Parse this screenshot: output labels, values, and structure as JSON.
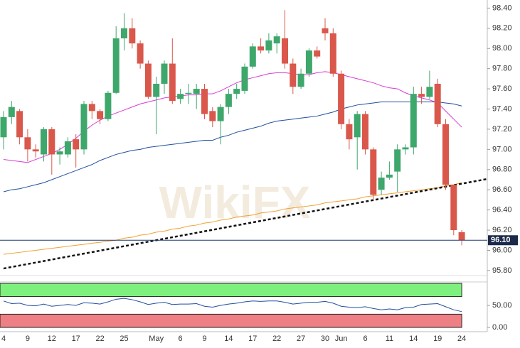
{
  "chart_data": [
    {
      "type": "candlestick",
      "categories": [
        "4",
        null,
        null,
        "9",
        null,
        null,
        "12",
        null,
        null,
        "17",
        null,
        null,
        "22",
        null,
        null,
        "25",
        null,
        null,
        null,
        "May",
        null,
        null,
        "6",
        null,
        null,
        "9",
        null,
        null,
        "14",
        null,
        null,
        "17",
        null,
        null,
        "22",
        null,
        null,
        "27",
        null,
        null,
        "30",
        null,
        "Jun",
        null,
        null,
        "6",
        null,
        null,
        "11",
        null,
        null,
        "14",
        null,
        null,
        "19",
        null,
        null,
        "24"
      ],
      "open": [
        97.12,
        97.32,
        97.38,
        97.12,
        97.0,
        96.95,
        97.2,
        96.95,
        96.95,
        97.1,
        97.0,
        97.45,
        97.38,
        97.3,
        97.56,
        98.1,
        98.2,
        98.05,
        97.85,
        97.52,
        97.65,
        97.85,
        97.5,
        97.55,
        97.55,
        97.6,
        97.38,
        97.28,
        97.42,
        97.55,
        97.58,
        97.82,
        98.02,
        97.98,
        98.05,
        98.1,
        97.85,
        97.62,
        97.75,
        97.98,
        98.2,
        98.15,
        97.75,
        97.25,
        97.12,
        97.35,
        97.0,
        96.6,
        96.72,
        96.78,
        97.0,
        97.02,
        97.55,
        97.52,
        97.65,
        97.25,
        96.65,
        96.18
      ],
      "high": [
        97.38,
        97.48,
        97.4,
        97.2,
        97.05,
        97.22,
        97.22,
        97.02,
        97.12,
        97.15,
        97.48,
        97.48,
        97.4,
        97.58,
        98.22,
        98.35,
        98.3,
        98.08,
        97.88,
        97.72,
        97.88,
        98.1,
        97.6,
        97.65,
        97.65,
        97.65,
        97.42,
        97.45,
        97.6,
        97.65,
        97.85,
        98.05,
        98.1,
        98.15,
        98.15,
        98.38,
        97.9,
        97.8,
        98.0,
        98.02,
        98.3,
        98.2,
        97.78,
        97.3,
        97.38,
        97.38,
        97.02,
        96.78,
        96.88,
        97.05,
        97.05,
        97.62,
        97.62,
        97.78,
        97.7,
        97.3,
        96.65,
        96.2
      ],
      "low": [
        97.0,
        97.25,
        97.05,
        96.88,
        96.92,
        96.88,
        96.75,
        96.85,
        96.92,
        96.82,
        96.95,
        97.3,
        97.25,
        97.28,
        97.55,
        97.98,
        98.0,
        97.8,
        97.5,
        97.15,
        97.55,
        97.45,
        97.45,
        97.45,
        97.4,
        97.3,
        97.22,
        97.05,
        97.35,
        97.5,
        97.55,
        97.8,
        97.95,
        97.95,
        97.95,
        97.8,
        97.55,
        97.6,
        97.72,
        97.9,
        98.08,
        97.72,
        97.2,
        97.0,
        96.8,
        96.95,
        96.5,
        96.55,
        96.7,
        96.58,
        96.95,
        96.95,
        97.45,
        97.5,
        97.22,
        96.6,
        96.15,
        96.05
      ],
      "close": [
        97.32,
        97.42,
        97.12,
        97.0,
        96.98,
        97.2,
        96.95,
        96.98,
        97.08,
        97.0,
        97.45,
        97.38,
        97.3,
        97.56,
        98.1,
        98.2,
        98.05,
        97.85,
        97.52,
        97.65,
        97.85,
        97.48,
        97.55,
        97.56,
        97.6,
        97.35,
        97.28,
        97.42,
        97.55,
        97.6,
        97.82,
        98.02,
        97.98,
        98.08,
        98.12,
        97.85,
        97.62,
        97.75,
        97.98,
        97.92,
        98.15,
        97.75,
        97.25,
        97.1,
        97.35,
        97.0,
        96.55,
        96.72,
        96.75,
        97.0,
        97.02,
        97.55,
        97.52,
        97.62,
        97.25,
        96.65,
        96.2,
        96.1
      ],
      "up_color": "#3ea76b",
      "down_color": "#d9574b",
      "overlays": [
        {
          "color": "#d63bd6",
          "values": [
            96.9,
            96.89,
            96.88,
            96.87,
            96.9,
            96.93,
            96.96,
            97.0,
            97.05,
            97.11,
            97.18,
            97.24,
            97.29,
            97.33,
            97.36,
            97.39,
            97.42,
            97.45,
            97.47,
            97.49,
            97.51,
            97.52,
            97.53,
            97.54,
            97.54,
            97.55,
            97.55,
            97.58,
            97.62,
            97.66,
            97.69,
            97.71,
            97.73,
            97.75,
            97.76,
            97.76,
            97.75,
            97.74,
            97.74,
            97.76,
            97.77,
            97.76,
            97.74,
            97.72,
            97.7,
            97.68,
            97.66,
            97.63,
            97.61,
            97.6,
            97.56,
            97.53,
            97.51,
            97.49,
            97.46,
            97.38,
            97.3,
            97.22
          ]
        },
        {
          "color": "#1f4e9c",
          "values": [
            96.58,
            96.6,
            96.61,
            96.63,
            96.65,
            96.67,
            96.7,
            96.73,
            96.76,
            96.79,
            96.82,
            96.85,
            96.89,
            96.92,
            96.95,
            96.97,
            96.99,
            97.0,
            97.02,
            97.03,
            97.04,
            97.05,
            97.06,
            97.07,
            97.08,
            97.09,
            97.09,
            97.12,
            97.14,
            97.17,
            97.19,
            97.21,
            97.23,
            97.26,
            97.28,
            97.29,
            97.3,
            97.31,
            97.32,
            97.33,
            97.35,
            97.37,
            97.4,
            97.42,
            97.44,
            97.45,
            97.46,
            97.47,
            97.47,
            97.47,
            97.47,
            97.47,
            97.47,
            97.47,
            97.47,
            97.46,
            97.45,
            97.43
          ]
        },
        {
          "color": "#f0a030",
          "values": [
            95.96,
            95.97,
            95.98,
            95.99,
            96.0,
            96.01,
            96.02,
            96.03,
            96.04,
            96.05,
            96.06,
            96.07,
            96.08,
            96.09,
            96.1,
            96.12,
            96.13,
            96.15,
            96.16,
            96.18,
            96.19,
            96.21,
            96.22,
            96.24,
            96.25,
            96.27,
            96.28,
            96.3,
            96.31,
            96.33,
            96.34,
            96.35,
            96.37,
            96.38,
            96.39,
            96.41,
            96.42,
            96.43,
            96.44,
            96.45,
            96.47,
            96.48,
            96.49,
            96.5,
            96.51,
            96.53,
            96.54,
            96.55,
            96.56,
            96.57,
            96.58,
            96.59,
            96.6,
            96.61,
            96.62,
            96.64,
            96.65,
            96.67
          ]
        }
      ],
      "trendline": {
        "from": 95.82,
        "to": 96.66,
        "color": "#111111"
      },
      "last_price": {
        "value": 96.1,
        "label": "96.10"
      },
      "ylim": [
        95.75,
        98.48
      ],
      "yticks": [
        {
          "value": 95.8,
          "label": "95.80"
        },
        {
          "value": 96,
          "label": "96.00"
        },
        {
          "value": 96.2,
          "label": "96.20"
        },
        {
          "value": 96.4,
          "label": "96.40"
        },
        {
          "value": 96.6,
          "label": "96.60"
        },
        {
          "value": 96.8,
          "label": "96.80"
        },
        {
          "value": 97,
          "label": "97.00"
        },
        {
          "value": 97.2,
          "label": "97.20"
        },
        {
          "value": 97.4,
          "label": "97.40"
        },
        {
          "value": 97.6,
          "label": "97.60"
        },
        {
          "value": 97.8,
          "label": "97.80"
        },
        {
          "value": 98,
          "label": "98.00"
        },
        {
          "value": 98.2,
          "label": "98.20"
        },
        {
          "value": 98.4,
          "label": "98.40"
        }
      ],
      "watermark": "WikiFX"
    },
    {
      "type": "line",
      "values": [
        60,
        54,
        55,
        50,
        49,
        53,
        48,
        50,
        52,
        50,
        56,
        55,
        53,
        58,
        64,
        66,
        63,
        58,
        52,
        55,
        57,
        52,
        53,
        53,
        54,
        48,
        46,
        50,
        53,
        55,
        58,
        60,
        59,
        60,
        60,
        57,
        53,
        55,
        57,
        57,
        59,
        55,
        48,
        46,
        45,
        47,
        43,
        40,
        42,
        40,
        45,
        46,
        52,
        53,
        54,
        47,
        40,
        36
      ],
      "color": "#1f4e9c",
      "ylim": [
        0,
        100
      ],
      "yticks": [
        {
          "value": 0,
          "label": "0.00"
        },
        {
          "value": 50,
          "label": "50.00"
        }
      ],
      "zones": [
        {
          "from": 70,
          "to": 100,
          "color": "#7ef07e"
        },
        {
          "from": 0,
          "to": 30,
          "color": "#ee7f85"
        }
      ]
    }
  ]
}
